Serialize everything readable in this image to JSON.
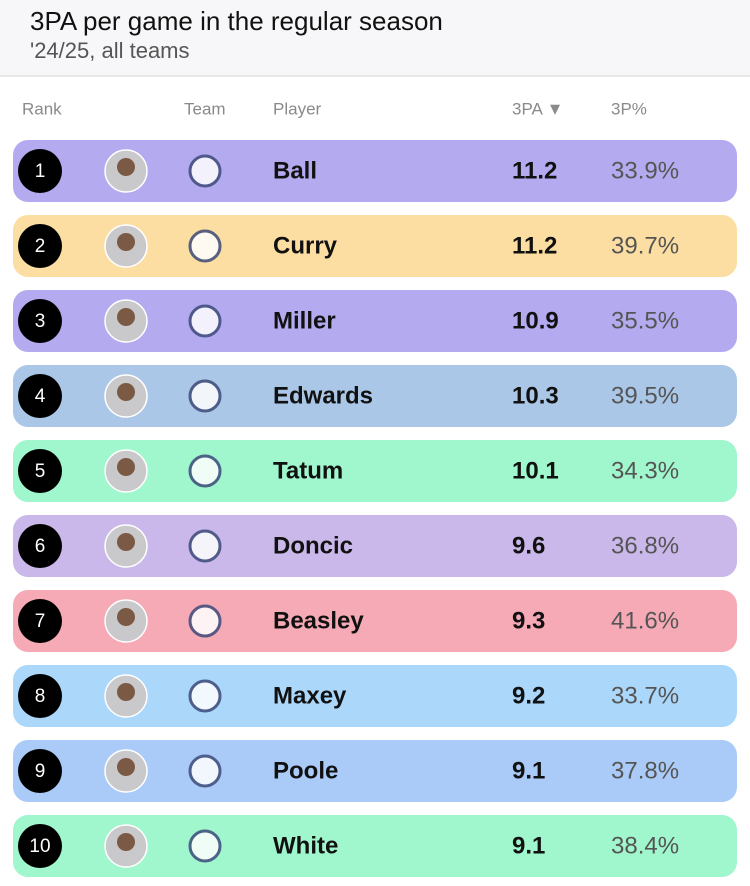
{
  "header": {
    "title": "3PA per game in the regular season",
    "subtitle": "'24/25, all teams"
  },
  "table": {
    "columns": [
      "Rank",
      "Team",
      "Player",
      "3PA ▼",
      "3P%"
    ],
    "rows": [
      {
        "rank": "1",
        "player": "Ball",
        "tpa": "11.2",
        "pct": "33.9%",
        "color": "#b4aaef"
      },
      {
        "rank": "2",
        "player": "Curry",
        "tpa": "11.2",
        "pct": "39.7%",
        "color": "#fcdea2"
      },
      {
        "rank": "3",
        "player": "Miller",
        "tpa": "10.9",
        "pct": "35.5%",
        "color": "#b4aaef"
      },
      {
        "rank": "4",
        "player": "Edwards",
        "tpa": "10.3",
        "pct": "39.5%",
        "color": "#aac7e7"
      },
      {
        "rank": "5",
        "player": "Tatum",
        "tpa": "10.1",
        "pct": "34.3%",
        "color": "#a0f6cd"
      },
      {
        "rank": "6",
        "player": "Doncic",
        "tpa": "9.6",
        "pct": "36.8%",
        "color": "#c9b8e9"
      },
      {
        "rank": "7",
        "player": "Beasley",
        "tpa": "9.3",
        "pct": "41.6%",
        "color": "#f5aab6"
      },
      {
        "rank": "8",
        "player": "Maxey",
        "tpa": "9.2",
        "pct": "33.7%",
        "color": "#aad7fa"
      },
      {
        "rank": "9",
        "player": "Poole",
        "tpa": "9.1",
        "pct": "37.8%",
        "color": "#aacbf8"
      },
      {
        "rank": "10",
        "player": "White",
        "tpa": "9.1",
        "pct": "38.4%",
        "color": "#a0f6cd"
      }
    ]
  }
}
